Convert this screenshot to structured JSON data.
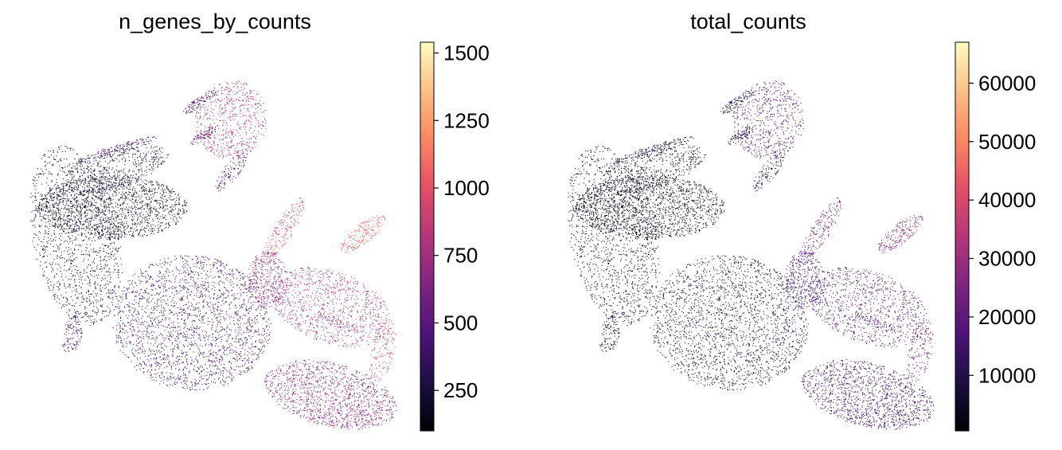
{
  "chart_data": [
    {
      "type": "scatter",
      "title": "n_genes_by_counts",
      "xlabel": "",
      "ylabel": "",
      "colormap": "magma",
      "colorbar": {
        "range": [
          100,
          1540
        ],
        "ticks": [
          250,
          500,
          750,
          1000,
          1250,
          1500
        ],
        "tick_labels": [
          "250",
          "500",
          "750",
          "1000",
          "1250",
          "1500"
        ]
      },
      "grid": false,
      "axes_visible": false
    },
    {
      "type": "scatter",
      "title": "total_counts",
      "xlabel": "",
      "ylabel": "",
      "colormap": "magma",
      "colorbar": {
        "range": [
          500,
          67000
        ],
        "ticks": [
          10000,
          20000,
          30000,
          40000,
          50000,
          60000
        ],
        "tick_labels": [
          "10000",
          "20000",
          "30000",
          "40000",
          "50000",
          "60000"
        ]
      },
      "grid": false,
      "axes_visible": false
    }
  ]
}
